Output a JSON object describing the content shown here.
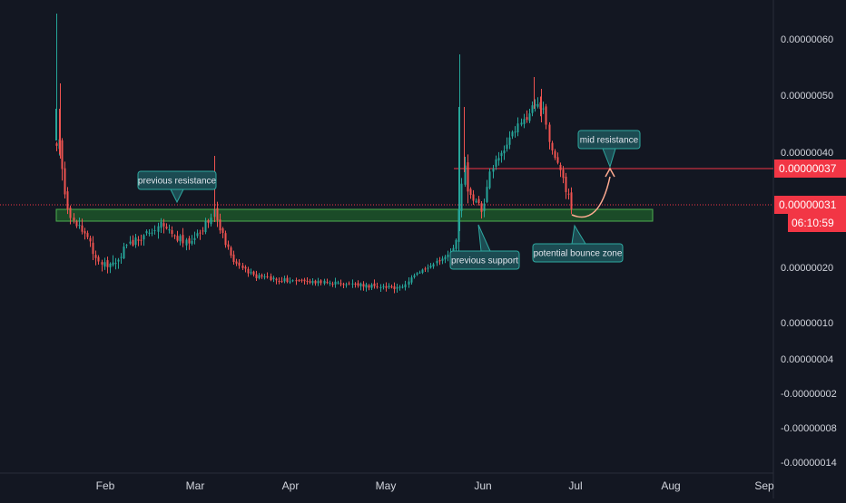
{
  "chart_data": {
    "type": "candlestick",
    "title": "",
    "xlabel": "",
    "ylabel": "",
    "x_ticks": [
      "Feb",
      "Mar",
      "Apr",
      "May",
      "Jun",
      "Jul",
      "Aug",
      "Sep"
    ],
    "y_ticks": [
      "0.00000060",
      "0.00000050",
      "0.00000040",
      "0.00000020",
      "0.00000010",
      "0.00000004",
      "-0.00000002",
      "-0.00000008",
      "-0.00000014"
    ],
    "price_labels": {
      "mid_resistance": "0.00000037",
      "current_price": "0.00000031",
      "countdown": "06:10:59"
    },
    "annotations": [
      {
        "text": "previous resistance"
      },
      {
        "text": "previous support"
      },
      {
        "text": "potential bounce zone"
      },
      {
        "text": "mid resistance"
      }
    ],
    "levels": {
      "support_zone": [
        2.85e-07,
        3e-07
      ],
      "mid_resistance": 3.7e-07,
      "current_price": 3.1e-07
    },
    "period_trend": [
      {
        "period": "mid-Jan",
        "open": 4.2e-07,
        "high": 6.4e-07,
        "low": 4e-07,
        "close": 4.5e-07
      },
      {
        "period": "late Jan",
        "open": 3.6e-07,
        "high": 3.6e-07,
        "low": 2e-07,
        "close": 2.2e-07
      },
      {
        "period": "Feb",
        "open": 2.2e-07,
        "high": 2.8e-07,
        "low": 1.9e-07,
        "close": 2.4e-07
      },
      {
        "period": "early Mar",
        "open": 2.7e-07,
        "high": 4e-07,
        "low": 2.4e-07,
        "close": 2.5e-07
      },
      {
        "period": "Apr",
        "open": 1.8e-07,
        "high": 1.9e-07,
        "low": 1.5e-07,
        "close": 1.6e-07
      },
      {
        "period": "early May",
        "open": 1.6e-07,
        "high": 1.7e-07,
        "low": 1.4e-07,
        "close": 1.6e-07
      },
      {
        "period": "late May",
        "open": 2.5e-07,
        "high": 5.7e-07,
        "low": 2.6e-07,
        "close": 3.8e-07
      },
      {
        "period": "mid Jun",
        "open": 4.6e-07,
        "high": 5.3e-07,
        "low": 4.3e-07,
        "close": 4.8e-07
      },
      {
        "period": "late Jun",
        "open": 3.4e-07,
        "high": 3.5e-07,
        "low": 2.9e-07,
        "close": 3e-07
      }
    ],
    "projection": {
      "from": 2.9e-07,
      "to": 3.7e-07
    },
    "colors": {
      "background": "#131722",
      "up": "#26a69a",
      "down": "#ef5350",
      "support_zone": "#1f5e2b",
      "support_zone_border": "#4caf50",
      "price_label": "#f23645",
      "annotation_fill": "#1c4b52",
      "annotation_border": "#2ea8a0",
      "projection_arrow": "#ffab91",
      "axis_text": "#d1d4dc"
    },
    "grid": false,
    "scale": "logarithmic"
  }
}
